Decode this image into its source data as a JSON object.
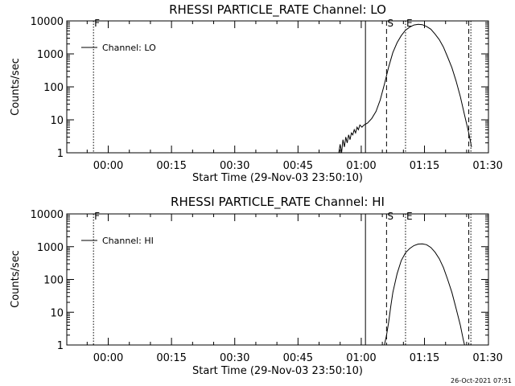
{
  "footer": {
    "timestamp": "26-Oct-2021 07:51"
  },
  "style": {
    "line_color": "#000000",
    "background": "#ffffff"
  },
  "chart_data": [
    {
      "type": "line",
      "title": "RHESSI PARTICLE_RATE Channel: LO",
      "xlabel": "Start Time (29-Nov-03 23:50:10)",
      "ylabel": "Counts/sec",
      "y_scale": "log",
      "xlim": [
        "23:50:10",
        "01:30:10"
      ],
      "ylim": [
        1,
        10000
      ],
      "xticks": [
        "00:00",
        "00:15",
        "00:30",
        "00:45",
        "01:00",
        "01:15",
        "01:30"
      ],
      "yticks": [
        "1",
        "10",
        "100",
        "1000",
        "10000"
      ],
      "legend": {
        "position": "top-left",
        "entries": [
          "Channel: LO"
        ]
      },
      "markers": [
        {
          "label": "F",
          "time": "23:56:30",
          "style": "dotted"
        },
        {
          "label": "",
          "time": "01:01:00",
          "style": "solid"
        },
        {
          "label": "S",
          "time": "01:06:00",
          "style": "dashed"
        },
        {
          "label": "E",
          "time": "01:10:30",
          "style": "dotted"
        },
        {
          "label": "",
          "time": "01:25:30",
          "style": "dashed"
        },
        {
          "label": "",
          "time": "01:26:00",
          "style": "dotted"
        }
      ],
      "series": [
        {
          "name": "Channel: LO",
          "points": [
            [
              "00:54:40",
              1
            ],
            [
              "00:55:00",
              1.8
            ],
            [
              "00:55:20",
              1
            ],
            [
              "00:55:40",
              2.5
            ],
            [
              "00:56:00",
              1.5
            ],
            [
              "00:56:20",
              3
            ],
            [
              "00:56:40",
              2
            ],
            [
              "00:57:00",
              3.5
            ],
            [
              "00:57:20",
              2.5
            ],
            [
              "00:57:40",
              4
            ],
            [
              "00:58:00",
              3.5
            ],
            [
              "00:58:20",
              5
            ],
            [
              "00:58:40",
              4
            ],
            [
              "00:59:00",
              6
            ],
            [
              "00:59:20",
              5
            ],
            [
              "00:59:40",
              7
            ],
            [
              "01:00:10",
              6
            ],
            [
              "01:00:40",
              7
            ],
            [
              "01:01:30",
              8
            ],
            [
              "01:02:30",
              11
            ],
            [
              "01:03:30",
              18
            ],
            [
              "01:04:30",
              40
            ],
            [
              "01:05:30",
              120
            ],
            [
              "01:06:30",
              400
            ],
            [
              "01:07:30",
              1100
            ],
            [
              "01:08:30",
              2200
            ],
            [
              "01:09:30",
              3600
            ],
            [
              "01:10:30",
              5200
            ],
            [
              "01:11:30",
              6500
            ],
            [
              "01:12:30",
              7500
            ],
            [
              "01:13:30",
              7900
            ],
            [
              "01:14:30",
              7700
            ],
            [
              "01:15:30",
              6800
            ],
            [
              "01:16:30",
              5600
            ],
            [
              "01:17:30",
              4000
            ],
            [
              "01:18:30",
              2700
            ],
            [
              "01:19:30",
              1600
            ],
            [
              "01:20:30",
              800
            ],
            [
              "01:21:30",
              380
            ],
            [
              "01:22:30",
              150
            ],
            [
              "01:23:30",
              50
            ],
            [
              "01:24:30",
              14
            ],
            [
              "01:25:30",
              4
            ],
            [
              "01:26:10",
              1.5
            ]
          ]
        }
      ]
    },
    {
      "type": "line",
      "title": "RHESSI PARTICLE_RATE Channel: HI",
      "xlabel": "Start Time (29-Nov-03 23:50:10)",
      "ylabel": "Counts/sec",
      "y_scale": "log",
      "xlim": [
        "23:50:10",
        "01:30:10"
      ],
      "ylim": [
        1,
        10000
      ],
      "xticks": [
        "00:00",
        "00:15",
        "00:30",
        "00:45",
        "01:00",
        "01:15",
        "01:30"
      ],
      "yticks": [
        "1",
        "10",
        "100",
        "1000",
        "10000"
      ],
      "legend": {
        "position": "top-left",
        "entries": [
          "Channel: HI"
        ]
      },
      "markers": [
        {
          "label": "F",
          "time": "23:56:30",
          "style": "dotted"
        },
        {
          "label": "",
          "time": "01:01:00",
          "style": "solid"
        },
        {
          "label": "S",
          "time": "01:06:00",
          "style": "dashed"
        },
        {
          "label": "E",
          "time": "01:10:30",
          "style": "dotted"
        },
        {
          "label": "",
          "time": "01:25:30",
          "style": "dashed"
        },
        {
          "label": "",
          "time": "01:26:00",
          "style": "dotted"
        }
      ],
      "series": [
        {
          "name": "Channel: HI",
          "points": [
            [
              "01:05:30",
              1
            ],
            [
              "01:06:00",
              2
            ],
            [
              "01:06:30",
              5
            ],
            [
              "01:07:00",
              15
            ],
            [
              "01:07:30",
              40
            ],
            [
              "01:08:30",
              150
            ],
            [
              "01:09:30",
              380
            ],
            [
              "01:10:30",
              650
            ],
            [
              "01:11:30",
              880
            ],
            [
              "01:12:30",
              1080
            ],
            [
              "01:13:30",
              1200
            ],
            [
              "01:14:30",
              1220
            ],
            [
              "01:15:30",
              1150
            ],
            [
              "01:16:30",
              950
            ],
            [
              "01:17:30",
              680
            ],
            [
              "01:18:30",
              430
            ],
            [
              "01:19:30",
              230
            ],
            [
              "01:20:30",
              100
            ],
            [
              "01:21:30",
              40
            ],
            [
              "01:22:30",
              13
            ],
            [
              "01:23:30",
              4
            ],
            [
              "01:24:10",
              1.5
            ],
            [
              "01:24:30",
              1
            ]
          ]
        }
      ]
    }
  ]
}
